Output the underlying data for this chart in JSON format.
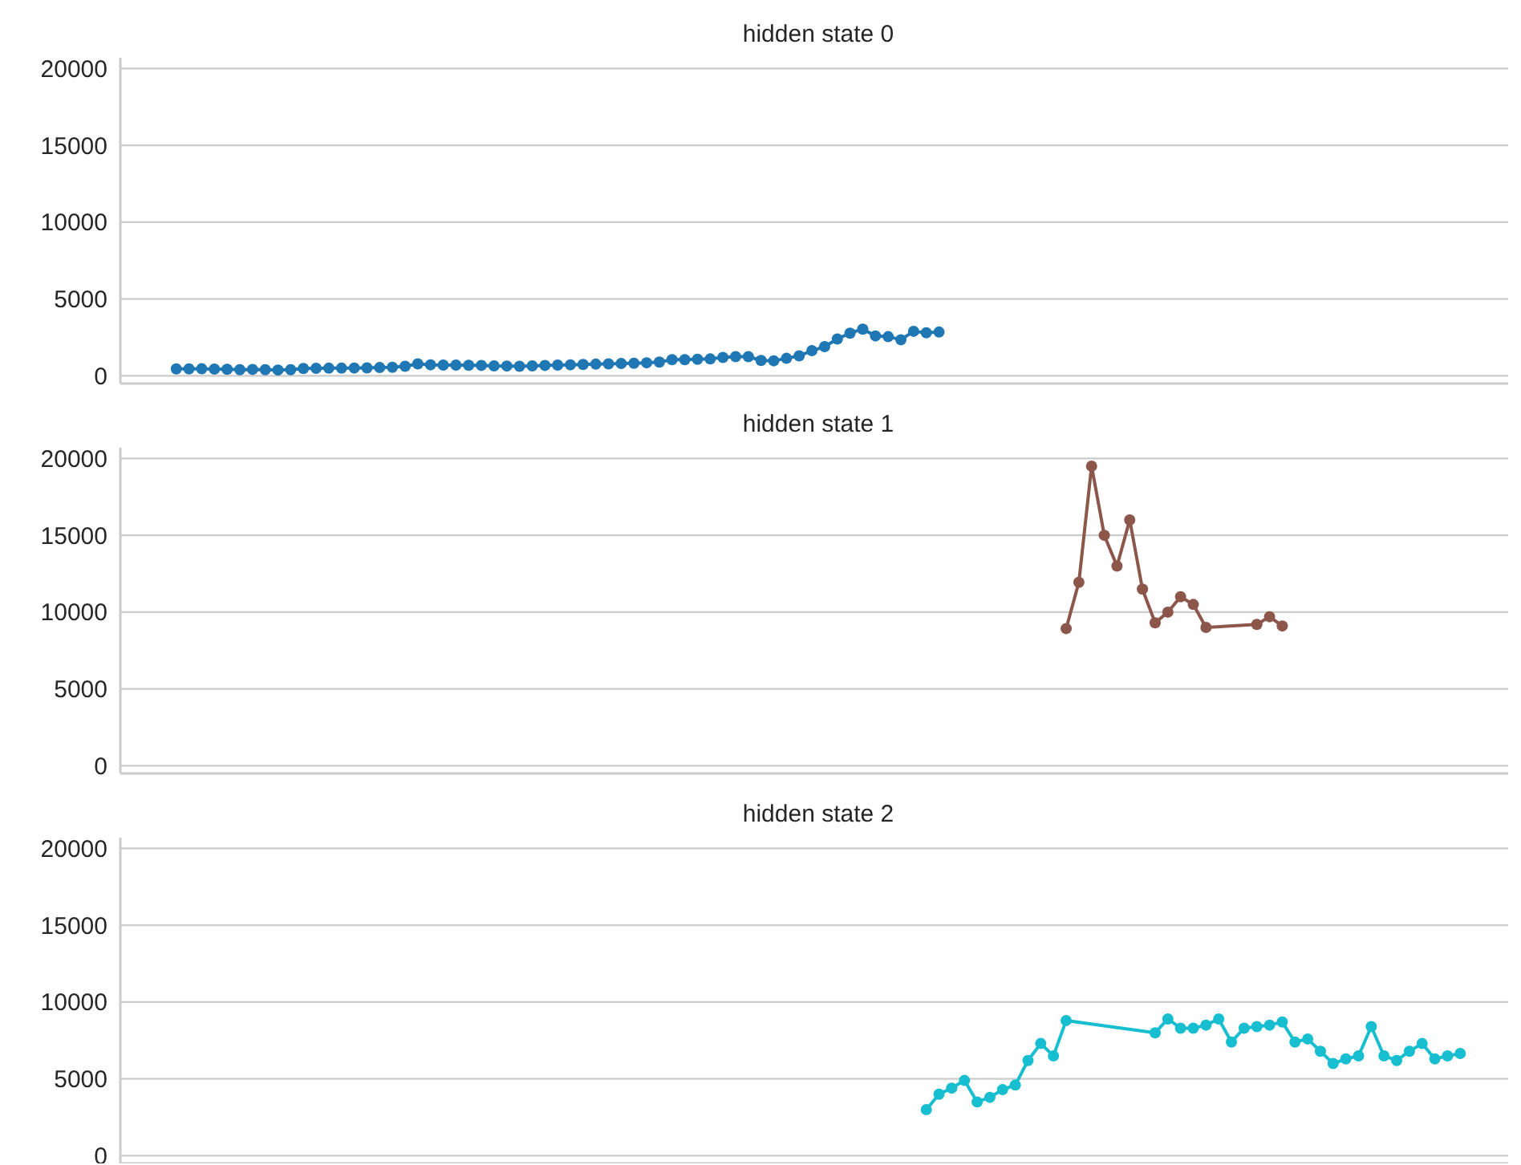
{
  "chart_data": [
    {
      "type": "line",
      "title": "hidden state 0",
      "categories": [
        null,
        null,
        null,
        null,
        null,
        null,
        null,
        null,
        null,
        null,
        null,
        null,
        null,
        null,
        null,
        null,
        null,
        null,
        null,
        null,
        null,
        null,
        null,
        null,
        null,
        null,
        null,
        null,
        null,
        null,
        null,
        null,
        null,
        null,
        null,
        null,
        null,
        null,
        null,
        null,
        null,
        null,
        null,
        null,
        null,
        null,
        null,
        null,
        null,
        null,
        null,
        null,
        null,
        null,
        null,
        null,
        null,
        null,
        null,
        null,
        null,
        null,
        null,
        null,
        null,
        null,
        null,
        null,
        null,
        null,
        null,
        null,
        null,
        null,
        null,
        null,
        null,
        null,
        null,
        null,
        null,
        null,
        null,
        null,
        null,
        null,
        null,
        null,
        null,
        null,
        null,
        null,
        null,
        null,
        null,
        null,
        null,
        null,
        null,
        null,
        null,
        null
      ],
      "ylim": [
        -500,
        20700
      ],
      "yticks": [
        0,
        5000,
        10000,
        15000,
        20000
      ],
      "grid": "y",
      "marker": "circle",
      "tick_labels": "y",
      "series": [
        {
          "color": "#1f77b4",
          "values": [
            450,
            450,
            460,
            440,
            430,
            400,
            420,
            400,
            380,
            400,
            480,
            490,
            500,
            500,
            510,
            520,
            540,
            560,
            620,
            780,
            720,
            700,
            700,
            690,
            680,
            650,
            640,
            620,
            650,
            680,
            700,
            720,
            740,
            760,
            780,
            800,
            820,
            850,
            900,
            1050,
            1050,
            1080,
            1100,
            1200,
            1250,
            1250,
            1000,
            980,
            1140,
            1300,
            1640,
            1900,
            2400,
            2780,
            3040,
            2600,
            2550,
            2350,
            2900,
            2800,
            2850,
            null,
            null,
            null,
            null,
            null,
            null,
            null,
            null,
            null,
            null,
            null,
            null,
            null,
            null,
            null,
            null,
            null,
            null,
            null,
            null,
            null,
            null,
            null,
            null,
            null,
            null,
            null,
            null,
            null,
            null,
            null,
            null,
            null,
            null,
            null,
            null,
            null,
            null,
            null,
            null,
            null
          ]
        }
      ]
    },
    {
      "type": "line",
      "title": "hidden state 1",
      "categories": [
        null,
        null,
        null,
        null,
        null,
        null,
        null,
        null,
        null,
        null,
        null,
        null,
        null,
        null,
        null,
        null,
        null,
        null,
        null,
        null,
        null,
        null,
        null,
        null,
        null,
        null,
        null,
        null,
        null,
        null,
        null,
        null,
        null,
        null,
        null,
        null,
        null,
        null,
        null,
        null,
        null,
        null,
        null,
        null,
        null,
        null,
        null,
        null,
        null,
        null,
        null,
        null,
        null,
        null,
        null,
        null,
        null,
        null,
        null,
        null,
        null,
        null,
        null,
        null,
        null,
        null,
        null,
        null,
        null,
        null,
        null,
        null,
        null,
        null,
        null,
        null,
        null,
        null,
        null,
        null,
        null,
        null,
        null,
        null,
        null,
        null,
        null,
        null,
        null,
        null,
        null,
        null,
        null,
        null,
        null,
        null,
        null,
        null,
        null,
        null,
        null,
        null
      ],
      "ylim": [
        -500,
        20700
      ],
      "yticks": [
        0,
        5000,
        10000,
        15000,
        20000
      ],
      "grid": "y",
      "marker": "circle",
      "tick_labels": "y",
      "series": [
        {
          "color": "#8c564b",
          "values": [
            null,
            null,
            null,
            null,
            null,
            null,
            null,
            null,
            null,
            null,
            null,
            null,
            null,
            null,
            null,
            null,
            null,
            null,
            null,
            null,
            null,
            null,
            null,
            null,
            null,
            null,
            null,
            null,
            null,
            null,
            null,
            null,
            null,
            null,
            null,
            null,
            null,
            null,
            null,
            null,
            null,
            null,
            null,
            null,
            null,
            null,
            null,
            null,
            null,
            null,
            null,
            null,
            null,
            null,
            null,
            null,
            null,
            null,
            null,
            null,
            null,
            null,
            null,
            null,
            null,
            null,
            null,
            null,
            null,
            null,
            8930,
            11940,
            19500,
            15000,
            13000,
            16000,
            11500,
            9300,
            10000,
            11000,
            10500,
            9000,
            null,
            null,
            null,
            9200,
            9700,
            9100,
            null,
            null,
            null,
            null,
            null,
            null,
            null,
            null,
            null,
            null,
            null,
            null,
            null,
            null
          ]
        }
      ]
    },
    {
      "type": "line",
      "title": "hidden state 2",
      "categories": [
        null,
        null,
        null,
        null,
        null,
        null,
        null,
        null,
        null,
        null,
        null,
        null,
        null,
        null,
        null,
        null,
        null,
        null,
        null,
        null,
        null,
        null,
        null,
        null,
        null,
        null,
        null,
        null,
        null,
        null,
        null,
        null,
        null,
        null,
        null,
        null,
        null,
        null,
        null,
        null,
        null,
        null,
        null,
        null,
        null,
        null,
        null,
        null,
        null,
        null,
        null,
        null,
        null,
        null,
        null,
        null,
        null,
        null,
        null,
        null,
        null,
        null,
        null,
        null,
        null,
        null,
        null,
        null,
        null,
        null,
        null,
        null,
        null,
        null,
        null,
        null,
        null,
        null,
        null,
        null,
        null,
        null,
        null,
        null,
        null,
        null,
        null,
        null,
        null,
        null,
        null,
        null,
        null,
        null,
        null,
        null,
        null,
        null,
        null,
        null,
        null,
        null
      ],
      "ylim": [
        -500,
        20700
      ],
      "yticks": [
        0,
        5000,
        10000,
        15000,
        20000
      ],
      "grid": "y",
      "marker": "circle",
      "tick_labels": "y",
      "series": [
        {
          "color": "#17becf",
          "values": [
            null,
            null,
            null,
            null,
            null,
            null,
            null,
            null,
            null,
            null,
            null,
            null,
            null,
            null,
            null,
            null,
            null,
            null,
            null,
            null,
            null,
            null,
            null,
            null,
            null,
            null,
            null,
            null,
            null,
            null,
            null,
            null,
            null,
            null,
            null,
            null,
            null,
            null,
            null,
            null,
            null,
            null,
            null,
            null,
            null,
            null,
            null,
            null,
            null,
            null,
            null,
            null,
            null,
            null,
            null,
            null,
            null,
            null,
            null,
            3000,
            4000,
            4400,
            4900,
            3500,
            3800,
            4300,
            4600,
            6200,
            7300,
            6500,
            8800,
            null,
            null,
            null,
            null,
            null,
            null,
            8000,
            8900,
            8300,
            8300,
            8500,
            8900,
            7400,
            8300,
            8400,
            8500,
            8700,
            7400,
            7600,
            6800,
            6000,
            6300,
            6500,
            8400,
            6500,
            6200,
            6800,
            7300,
            6300,
            6500,
            6650
          ]
        }
      ]
    }
  ]
}
